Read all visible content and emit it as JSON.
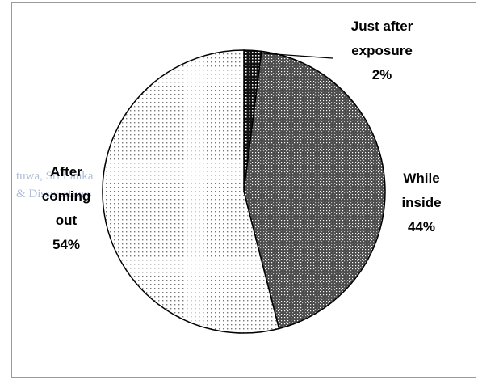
{
  "chart_data": {
    "type": "pie",
    "slices": [
      {
        "label_lines": [
          "Just after",
          "exposure"
        ],
        "value": 2,
        "value_label": "2%",
        "pattern": "dark"
      },
      {
        "label_lines": [
          "While",
          "inside"
        ],
        "value": 44,
        "value_label": "44%",
        "pattern": "medium"
      },
      {
        "label_lines": [
          "After",
          "coming",
          "out"
        ],
        "value": 54,
        "value_label": "54%",
        "pattern": "light"
      }
    ],
    "title": "",
    "legend": "none"
  },
  "watermark": {
    "line1": "tuwa, Sri Lanka",
    "line2": "& Dissertations"
  },
  "colors": {
    "outline": "#000000",
    "frame": "#9a9a9a",
    "watermark": "#6d86b5"
  }
}
